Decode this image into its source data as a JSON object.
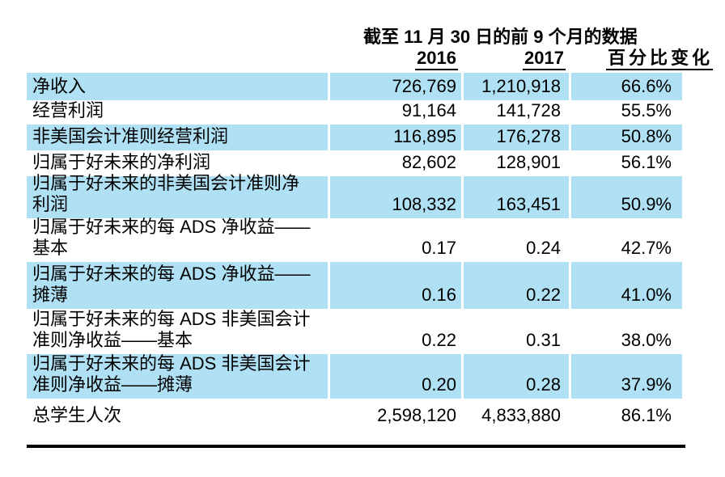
{
  "chart_data": {
    "type": "table",
    "title": "截至 11 月 30 日的前 9 个月的数据",
    "column_headers": [
      "2016",
      "2017",
      "百分比变化"
    ],
    "rows": [
      {
        "label_lines": [
          "净收入"
        ],
        "v2016": "726,769",
        "v2017": "1,210,918",
        "pct_change": "66.6%",
        "shaded": true
      },
      {
        "label_lines": [
          "经营利润"
        ],
        "v2016": "91,164",
        "v2017": "141,728",
        "pct_change": "55.5%",
        "shaded": false
      },
      {
        "label_lines": [
          "非美国会计准则经营利润"
        ],
        "v2016": "116,895",
        "v2017": "176,278",
        "pct_change": "50.8%",
        "shaded": true
      },
      {
        "label_lines": [
          "归属于好未来的净利润"
        ],
        "v2016": "82,602",
        "v2017": "128,901",
        "pct_change": "56.1%",
        "shaded": false
      },
      {
        "label_lines": [
          "归属于好未来的非美国会计准则净",
          "利润"
        ],
        "v2016": "108,332",
        "v2017": "163,451",
        "pct_change": "50.9%",
        "shaded": true
      },
      {
        "label_lines": [
          "归属于好未来的每 ADS 净收益——",
          "基本"
        ],
        "v2016": "0.17",
        "v2017": "0.24",
        "pct_change": "42.7%",
        "shaded": false
      },
      {
        "label_lines": [
          "归属于好未来的每 ADS 净收益——",
          "摊薄"
        ],
        "v2016": "0.16",
        "v2017": "0.22",
        "pct_change": "41.0%",
        "shaded": true
      },
      {
        "label_lines": [
          "归属于好未来的每 ADS 非美国会计",
          "准则净收益——基本"
        ],
        "v2016": "0.22",
        "v2017": "0.31",
        "pct_change": "38.0%",
        "shaded": false
      },
      {
        "label_lines": [
          "归属于好未来的每 ADS 非美国会计",
          "准则净收益——摊薄"
        ],
        "v2016": "0.20",
        "v2017": "0.28",
        "pct_change": "37.9%",
        "shaded": true
      },
      {
        "label_lines": [
          "总学生人次"
        ],
        "v2016": "2,598,120",
        "v2017": "4,833,880",
        "pct_change": "86.1%",
        "shaded": false
      }
    ],
    "shade_color": "#AFE0F4",
    "rule_color": "#000000"
  }
}
